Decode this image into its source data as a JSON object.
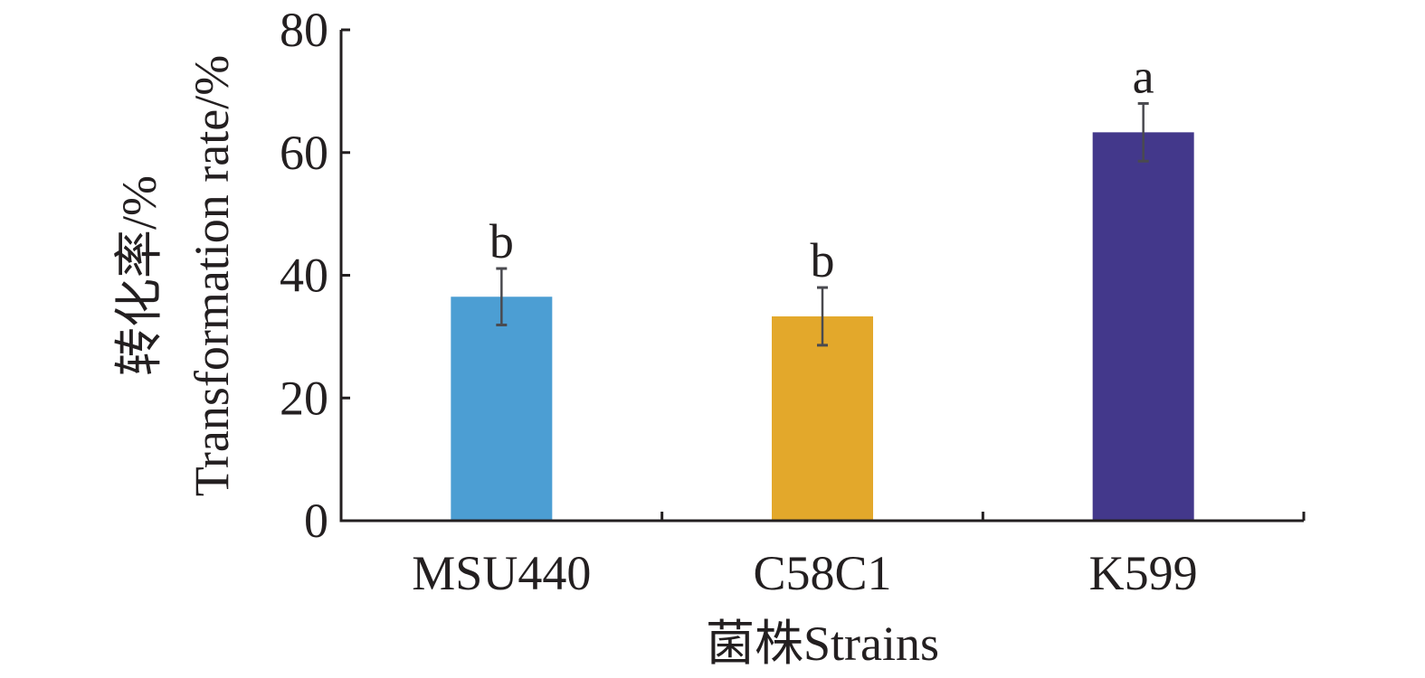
{
  "chart_data": {
    "type": "bar",
    "title": "",
    "categories": [
      "MSU440",
      "C58C1",
      "K599"
    ],
    "values": [
      36.5,
      33.3,
      63.3
    ],
    "errors": [
      4.6,
      4.7,
      4.7
    ],
    "significance_labels": [
      "b",
      "b",
      "a"
    ],
    "colors": [
      "#4c9ed3",
      "#e3a82b",
      "#43388b"
    ],
    "xlabel": "菌株Strains",
    "ylabel_cn": "转化率/%",
    "ylabel_en": "Transformation rate/%",
    "ylim": [
      0,
      80
    ],
    "yticks": [
      0,
      20,
      40,
      60,
      80
    ],
    "grid": false,
    "legend": "none"
  }
}
